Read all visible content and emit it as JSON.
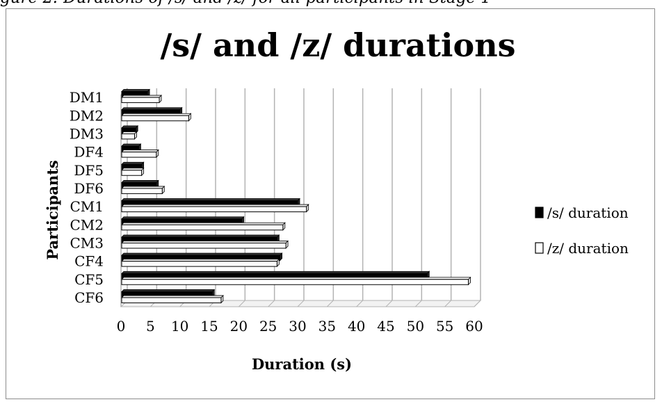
{
  "caption": "gure 2: Durations of /s/ and /z/ for all participants in Stage 1",
  "colors": {
    "s_fill": "#000000",
    "z_fill": "#ffffff",
    "z_stroke": "#000000",
    "grid": "#b3b3b3"
  },
  "chart_data": {
    "type": "bar",
    "orientation": "horizontal",
    "title": "/s/ and /z/ durations",
    "xlabel": "Duration  (s)",
    "ylabel": "Participants",
    "categories": [
      "DM1",
      "DM2",
      "DM3",
      "DF4",
      "DF5",
      "DF6",
      "CM1",
      "CM2",
      "CM3",
      "CF4",
      "CF5",
      "CF6"
    ],
    "series": [
      {
        "name": "/s/ duration",
        "values": [
          4.5,
          10,
          2.5,
          3,
          3.5,
          6,
          30,
          20.5,
          26.5,
          27,
          52,
          15.5
        ]
      },
      {
        "name": "/z/ duration",
        "values": [
          6.5,
          11.5,
          2.3,
          6,
          3.5,
          7,
          31.5,
          27.5,
          28,
          26.5,
          59,
          17
        ]
      }
    ],
    "xlim": [
      0,
      60
    ],
    "xticks": [
      "0",
      "5",
      "10",
      "15",
      "20",
      "25",
      "30",
      "35",
      "40",
      "45",
      "50",
      "55",
      "60"
    ],
    "grid": true,
    "legend": "right"
  }
}
